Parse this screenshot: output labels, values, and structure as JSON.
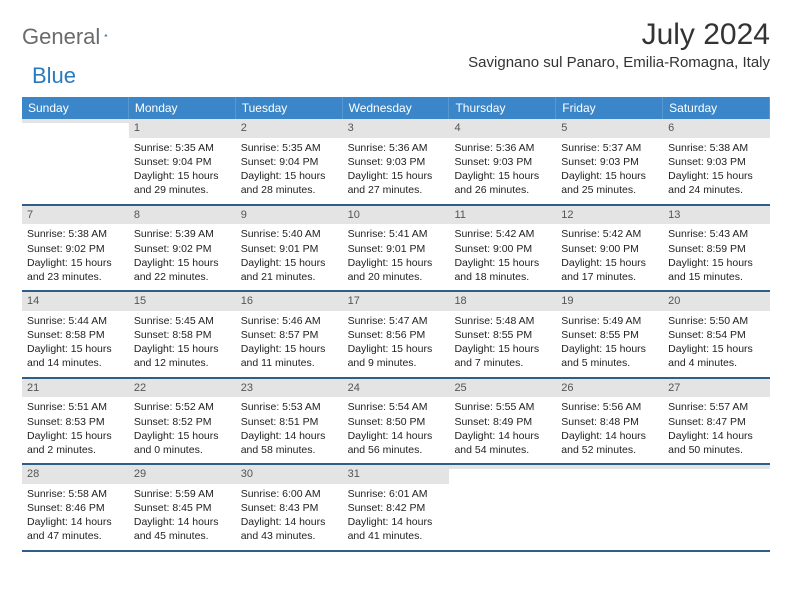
{
  "logo": {
    "word1": "General",
    "word2": "Blue"
  },
  "title": "July 2024",
  "location": "Savignano sul Panaro, Emilia-Romagna, Italy",
  "colors": {
    "header_bg": "#3a86c8",
    "header_fg": "#ffffff",
    "daynum_bg": "#e4e4e4",
    "week_divider": "#2f5f88",
    "logo_gray": "#6b6b6b",
    "logo_blue": "#2a7ac0"
  },
  "days_of_week": [
    "Sunday",
    "Monday",
    "Tuesday",
    "Wednesday",
    "Thursday",
    "Friday",
    "Saturday"
  ],
  "weeks": [
    [
      {
        "n": "",
        "lines": []
      },
      {
        "n": "1",
        "lines": [
          "Sunrise: 5:35 AM",
          "Sunset: 9:04 PM",
          "Daylight: 15 hours and 29 minutes."
        ]
      },
      {
        "n": "2",
        "lines": [
          "Sunrise: 5:35 AM",
          "Sunset: 9:04 PM",
          "Daylight: 15 hours and 28 minutes."
        ]
      },
      {
        "n": "3",
        "lines": [
          "Sunrise: 5:36 AM",
          "Sunset: 9:03 PM",
          "Daylight: 15 hours and 27 minutes."
        ]
      },
      {
        "n": "4",
        "lines": [
          "Sunrise: 5:36 AM",
          "Sunset: 9:03 PM",
          "Daylight: 15 hours and 26 minutes."
        ]
      },
      {
        "n": "5",
        "lines": [
          "Sunrise: 5:37 AM",
          "Sunset: 9:03 PM",
          "Daylight: 15 hours and 25 minutes."
        ]
      },
      {
        "n": "6",
        "lines": [
          "Sunrise: 5:38 AM",
          "Sunset: 9:03 PM",
          "Daylight: 15 hours and 24 minutes."
        ]
      }
    ],
    [
      {
        "n": "7",
        "lines": [
          "Sunrise: 5:38 AM",
          "Sunset: 9:02 PM",
          "Daylight: 15 hours and 23 minutes."
        ]
      },
      {
        "n": "8",
        "lines": [
          "Sunrise: 5:39 AM",
          "Sunset: 9:02 PM",
          "Daylight: 15 hours and 22 minutes."
        ]
      },
      {
        "n": "9",
        "lines": [
          "Sunrise: 5:40 AM",
          "Sunset: 9:01 PM",
          "Daylight: 15 hours and 21 minutes."
        ]
      },
      {
        "n": "10",
        "lines": [
          "Sunrise: 5:41 AM",
          "Sunset: 9:01 PM",
          "Daylight: 15 hours and 20 minutes."
        ]
      },
      {
        "n": "11",
        "lines": [
          "Sunrise: 5:42 AM",
          "Sunset: 9:00 PM",
          "Daylight: 15 hours and 18 minutes."
        ]
      },
      {
        "n": "12",
        "lines": [
          "Sunrise: 5:42 AM",
          "Sunset: 9:00 PM",
          "Daylight: 15 hours and 17 minutes."
        ]
      },
      {
        "n": "13",
        "lines": [
          "Sunrise: 5:43 AM",
          "Sunset: 8:59 PM",
          "Daylight: 15 hours and 15 minutes."
        ]
      }
    ],
    [
      {
        "n": "14",
        "lines": [
          "Sunrise: 5:44 AM",
          "Sunset: 8:58 PM",
          "Daylight: 15 hours and 14 minutes."
        ]
      },
      {
        "n": "15",
        "lines": [
          "Sunrise: 5:45 AM",
          "Sunset: 8:58 PM",
          "Daylight: 15 hours and 12 minutes."
        ]
      },
      {
        "n": "16",
        "lines": [
          "Sunrise: 5:46 AM",
          "Sunset: 8:57 PM",
          "Daylight: 15 hours and 11 minutes."
        ]
      },
      {
        "n": "17",
        "lines": [
          "Sunrise: 5:47 AM",
          "Sunset: 8:56 PM",
          "Daylight: 15 hours and 9 minutes."
        ]
      },
      {
        "n": "18",
        "lines": [
          "Sunrise: 5:48 AM",
          "Sunset: 8:55 PM",
          "Daylight: 15 hours and 7 minutes."
        ]
      },
      {
        "n": "19",
        "lines": [
          "Sunrise: 5:49 AM",
          "Sunset: 8:55 PM",
          "Daylight: 15 hours and 5 minutes."
        ]
      },
      {
        "n": "20",
        "lines": [
          "Sunrise: 5:50 AM",
          "Sunset: 8:54 PM",
          "Daylight: 15 hours and 4 minutes."
        ]
      }
    ],
    [
      {
        "n": "21",
        "lines": [
          "Sunrise: 5:51 AM",
          "Sunset: 8:53 PM",
          "Daylight: 15 hours and 2 minutes."
        ]
      },
      {
        "n": "22",
        "lines": [
          "Sunrise: 5:52 AM",
          "Sunset: 8:52 PM",
          "Daylight: 15 hours and 0 minutes."
        ]
      },
      {
        "n": "23",
        "lines": [
          "Sunrise: 5:53 AM",
          "Sunset: 8:51 PM",
          "Daylight: 14 hours and 58 minutes."
        ]
      },
      {
        "n": "24",
        "lines": [
          "Sunrise: 5:54 AM",
          "Sunset: 8:50 PM",
          "Daylight: 14 hours and 56 minutes."
        ]
      },
      {
        "n": "25",
        "lines": [
          "Sunrise: 5:55 AM",
          "Sunset: 8:49 PM",
          "Daylight: 14 hours and 54 minutes."
        ]
      },
      {
        "n": "26",
        "lines": [
          "Sunrise: 5:56 AM",
          "Sunset: 8:48 PM",
          "Daylight: 14 hours and 52 minutes."
        ]
      },
      {
        "n": "27",
        "lines": [
          "Sunrise: 5:57 AM",
          "Sunset: 8:47 PM",
          "Daylight: 14 hours and 50 minutes."
        ]
      }
    ],
    [
      {
        "n": "28",
        "lines": [
          "Sunrise: 5:58 AM",
          "Sunset: 8:46 PM",
          "Daylight: 14 hours and 47 minutes."
        ]
      },
      {
        "n": "29",
        "lines": [
          "Sunrise: 5:59 AM",
          "Sunset: 8:45 PM",
          "Daylight: 14 hours and 45 minutes."
        ]
      },
      {
        "n": "30",
        "lines": [
          "Sunrise: 6:00 AM",
          "Sunset: 8:43 PM",
          "Daylight: 14 hours and 43 minutes."
        ]
      },
      {
        "n": "31",
        "lines": [
          "Sunrise: 6:01 AM",
          "Sunset: 8:42 PM",
          "Daylight: 14 hours and 41 minutes."
        ]
      },
      {
        "n": "",
        "lines": []
      },
      {
        "n": "",
        "lines": []
      },
      {
        "n": "",
        "lines": []
      }
    ]
  ]
}
